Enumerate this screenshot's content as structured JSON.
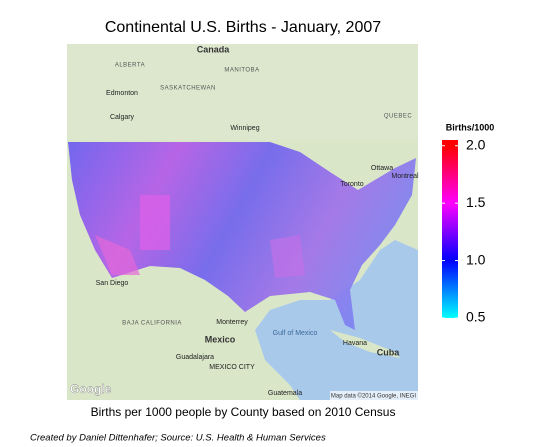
{
  "title": "Continental U.S. Births - January, 2007",
  "map": {
    "labels": [
      {
        "text": "Canada",
        "kind": "country"
      },
      {
        "text": "ALBERTA",
        "kind": "region"
      },
      {
        "text": "MANITOBA",
        "kind": "region"
      },
      {
        "text": "SASKATCHEWAN",
        "kind": "region"
      },
      {
        "text": "Edmonton",
        "kind": "city"
      },
      {
        "text": "Calgary",
        "kind": "city"
      },
      {
        "text": "Winnipeg",
        "kind": "city"
      },
      {
        "text": "QUEBEC",
        "kind": "region"
      },
      {
        "text": "Ottawa",
        "kind": "city"
      },
      {
        "text": "Montreal",
        "kind": "city"
      },
      {
        "text": "Toronto",
        "kind": "city"
      },
      {
        "text": "San Diego",
        "kind": "city"
      },
      {
        "text": "BAJA CALIFORNIA",
        "kind": "region"
      },
      {
        "text": "Monterrey",
        "kind": "city"
      },
      {
        "text": "Gulf of Mexico",
        "kind": "water"
      },
      {
        "text": "Mexico",
        "kind": "country"
      },
      {
        "text": "Guadalajara",
        "kind": "city"
      },
      {
        "text": "MEXICO CITY",
        "kind": "city"
      },
      {
        "text": "Havana",
        "kind": "city"
      },
      {
        "text": "Cuba",
        "kind": "country"
      },
      {
        "text": "Guatemala",
        "kind": "city"
      }
    ],
    "logo": "Google",
    "attribution": "Map data ©2014 Google, INEGI"
  },
  "legend": {
    "title": "Births/1000",
    "range": [
      0.5,
      2.05
    ],
    "ticks": [
      {
        "value": 0.5,
        "label": "0.5"
      },
      {
        "value": 1,
        "label": "1.0"
      },
      {
        "value": 1.5,
        "label": "1.5"
      },
      {
        "value": 2,
        "label": "2.0"
      }
    ],
    "colors": [
      "#00ffff",
      "#0000ff",
      "#ff00ff",
      "#ff0000"
    ]
  },
  "caption": "Births per 1000 people by County based on 2010 Census",
  "credit": "Created by Daniel Dittenhafer; Source: U.S. Health & Human Services"
}
